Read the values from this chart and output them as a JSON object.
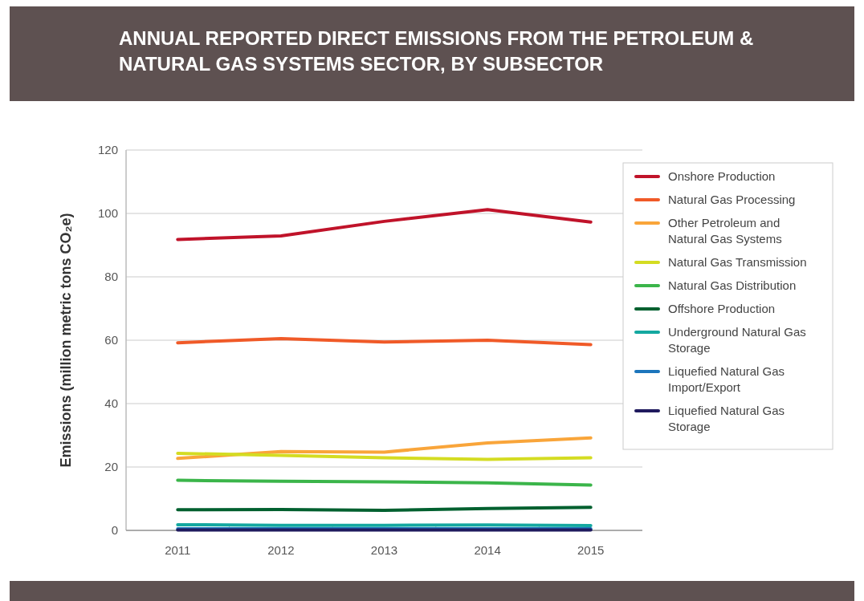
{
  "chart_data": {
    "type": "line",
    "title": "ANNUAL REPORTED DIRECT EMISSIONS FROM THE PETROLEUM & NATURAL GAS SYSTEMS SECTOR, BY SUBSECTOR",
    "ylabel": "Emissions (million metric tons CO₂e)",
    "categories": [
      "2011",
      "2012",
      "2013",
      "2014",
      "2015"
    ],
    "ylim": [
      0,
      120
    ],
    "yticks": [
      0,
      20,
      40,
      60,
      80,
      100,
      120
    ],
    "grid": "y",
    "legend": "right",
    "line_style": "solid",
    "marker": "none",
    "series": [
      {
        "name": "Onshore Production",
        "color": "#c0132a",
        "values": [
          91.8,
          92.9,
          97.5,
          101.2,
          97.3
        ]
      },
      {
        "name": "Natural Gas Processing",
        "color": "#f05a28",
        "values": [
          59.2,
          60.5,
          59.4,
          60.0,
          58.6
        ]
      },
      {
        "name": "Other Petroleum and Natural Gas Systems",
        "color": "#f9a53a",
        "values": [
          22.7,
          24.9,
          24.7,
          27.6,
          29.2
        ]
      },
      {
        "name": "Natural Gas Transmission",
        "color": "#d4dc22",
        "values": [
          24.3,
          23.7,
          22.9,
          22.4,
          22.9
        ]
      },
      {
        "name": "Natural Gas Distribution",
        "color": "#3bb54a",
        "values": [
          15.8,
          15.5,
          15.3,
          15.0,
          14.3
        ]
      },
      {
        "name": "Offshore Production",
        "color": "#00602f",
        "values": [
          6.5,
          6.6,
          6.3,
          6.9,
          7.3
        ]
      },
      {
        "name": "Underground Natural Gas Storage",
        "color": "#14a8a0",
        "values": [
          1.8,
          1.6,
          1.6,
          1.7,
          1.5
        ]
      },
      {
        "name": "Liquefied Natural Gas Import/Export",
        "color": "#1c75bc",
        "values": [
          0.5,
          0.5,
          0.5,
          0.5,
          0.5
        ]
      },
      {
        "name": "Liquefied Natural Gas Storage",
        "color": "#1f1a5e",
        "values": [
          0.1,
          0.1,
          0.1,
          0.1,
          0.1
        ]
      }
    ]
  }
}
